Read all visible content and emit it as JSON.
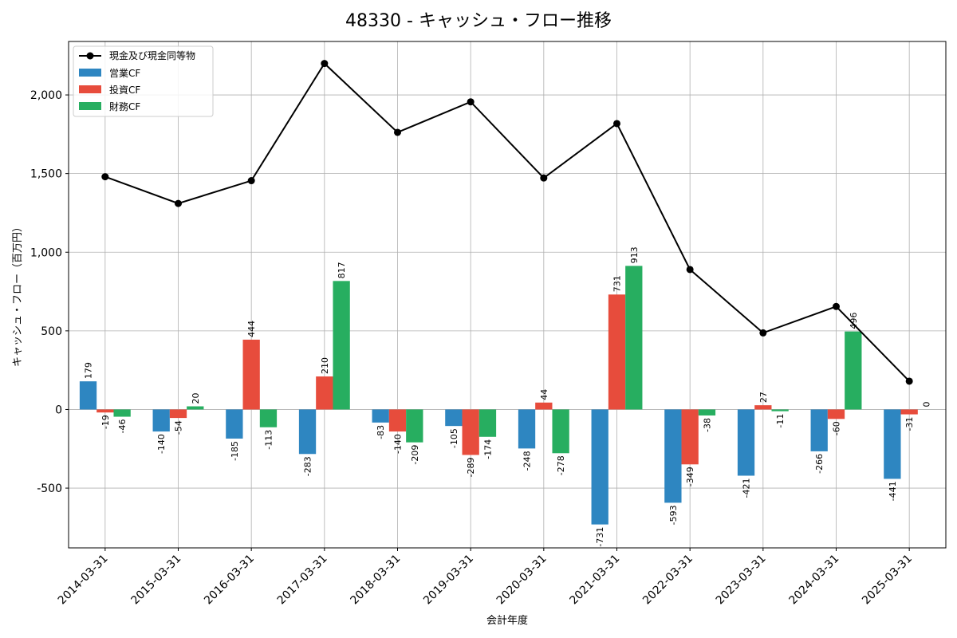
{
  "chart_data": {
    "type": "bar",
    "title": "48330 - キャッシュ・フロー推移",
    "xlabel": "会計年度",
    "ylabel": "キャッシュ・フロー（百万円）",
    "ylim": [
      -880,
      2340
    ],
    "yticks": [
      -500,
      0,
      500,
      1000,
      1500,
      2000
    ],
    "ytick_labels": [
      "-500",
      "0",
      "500",
      "1,000",
      "1,500",
      "2,000"
    ],
    "grid": true,
    "legend_position": "top-left",
    "categories": [
      "2014-03-31",
      "2015-03-31",
      "2016-03-31",
      "2017-03-31",
      "2018-03-31",
      "2019-03-31",
      "2020-03-31",
      "2021-03-31",
      "2022-03-31",
      "2023-03-31",
      "2024-03-31",
      "2025-03-31"
    ],
    "series": [
      {
        "name": "営業CF",
        "color": "#2e86c1",
        "values": [
          179,
          -140,
          -185,
          -283,
          -83,
          -105,
          -248,
          -731,
          -593,
          -421,
          -266,
          -441
        ]
      },
      {
        "name": "投資CF",
        "color": "#e74c3c",
        "values": [
          -19,
          -54,
          444,
          210,
          -140,
          -289,
          44,
          731,
          -349,
          27,
          -60,
          -31
        ]
      },
      {
        "name": "財務CF",
        "color": "#27ae60",
        "values": [
          -46,
          20,
          -113,
          817,
          -209,
          -174,
          -278,
          913,
          -38,
          -11,
          496,
          0
        ]
      }
    ],
    "line": {
      "name": "現金及び現金同等物",
      "color": "#000000",
      "values": [
        1480,
        1310,
        1455,
        2200,
        1762,
        1956,
        1472,
        1818,
        890,
        487,
        655,
        180
      ]
    }
  }
}
